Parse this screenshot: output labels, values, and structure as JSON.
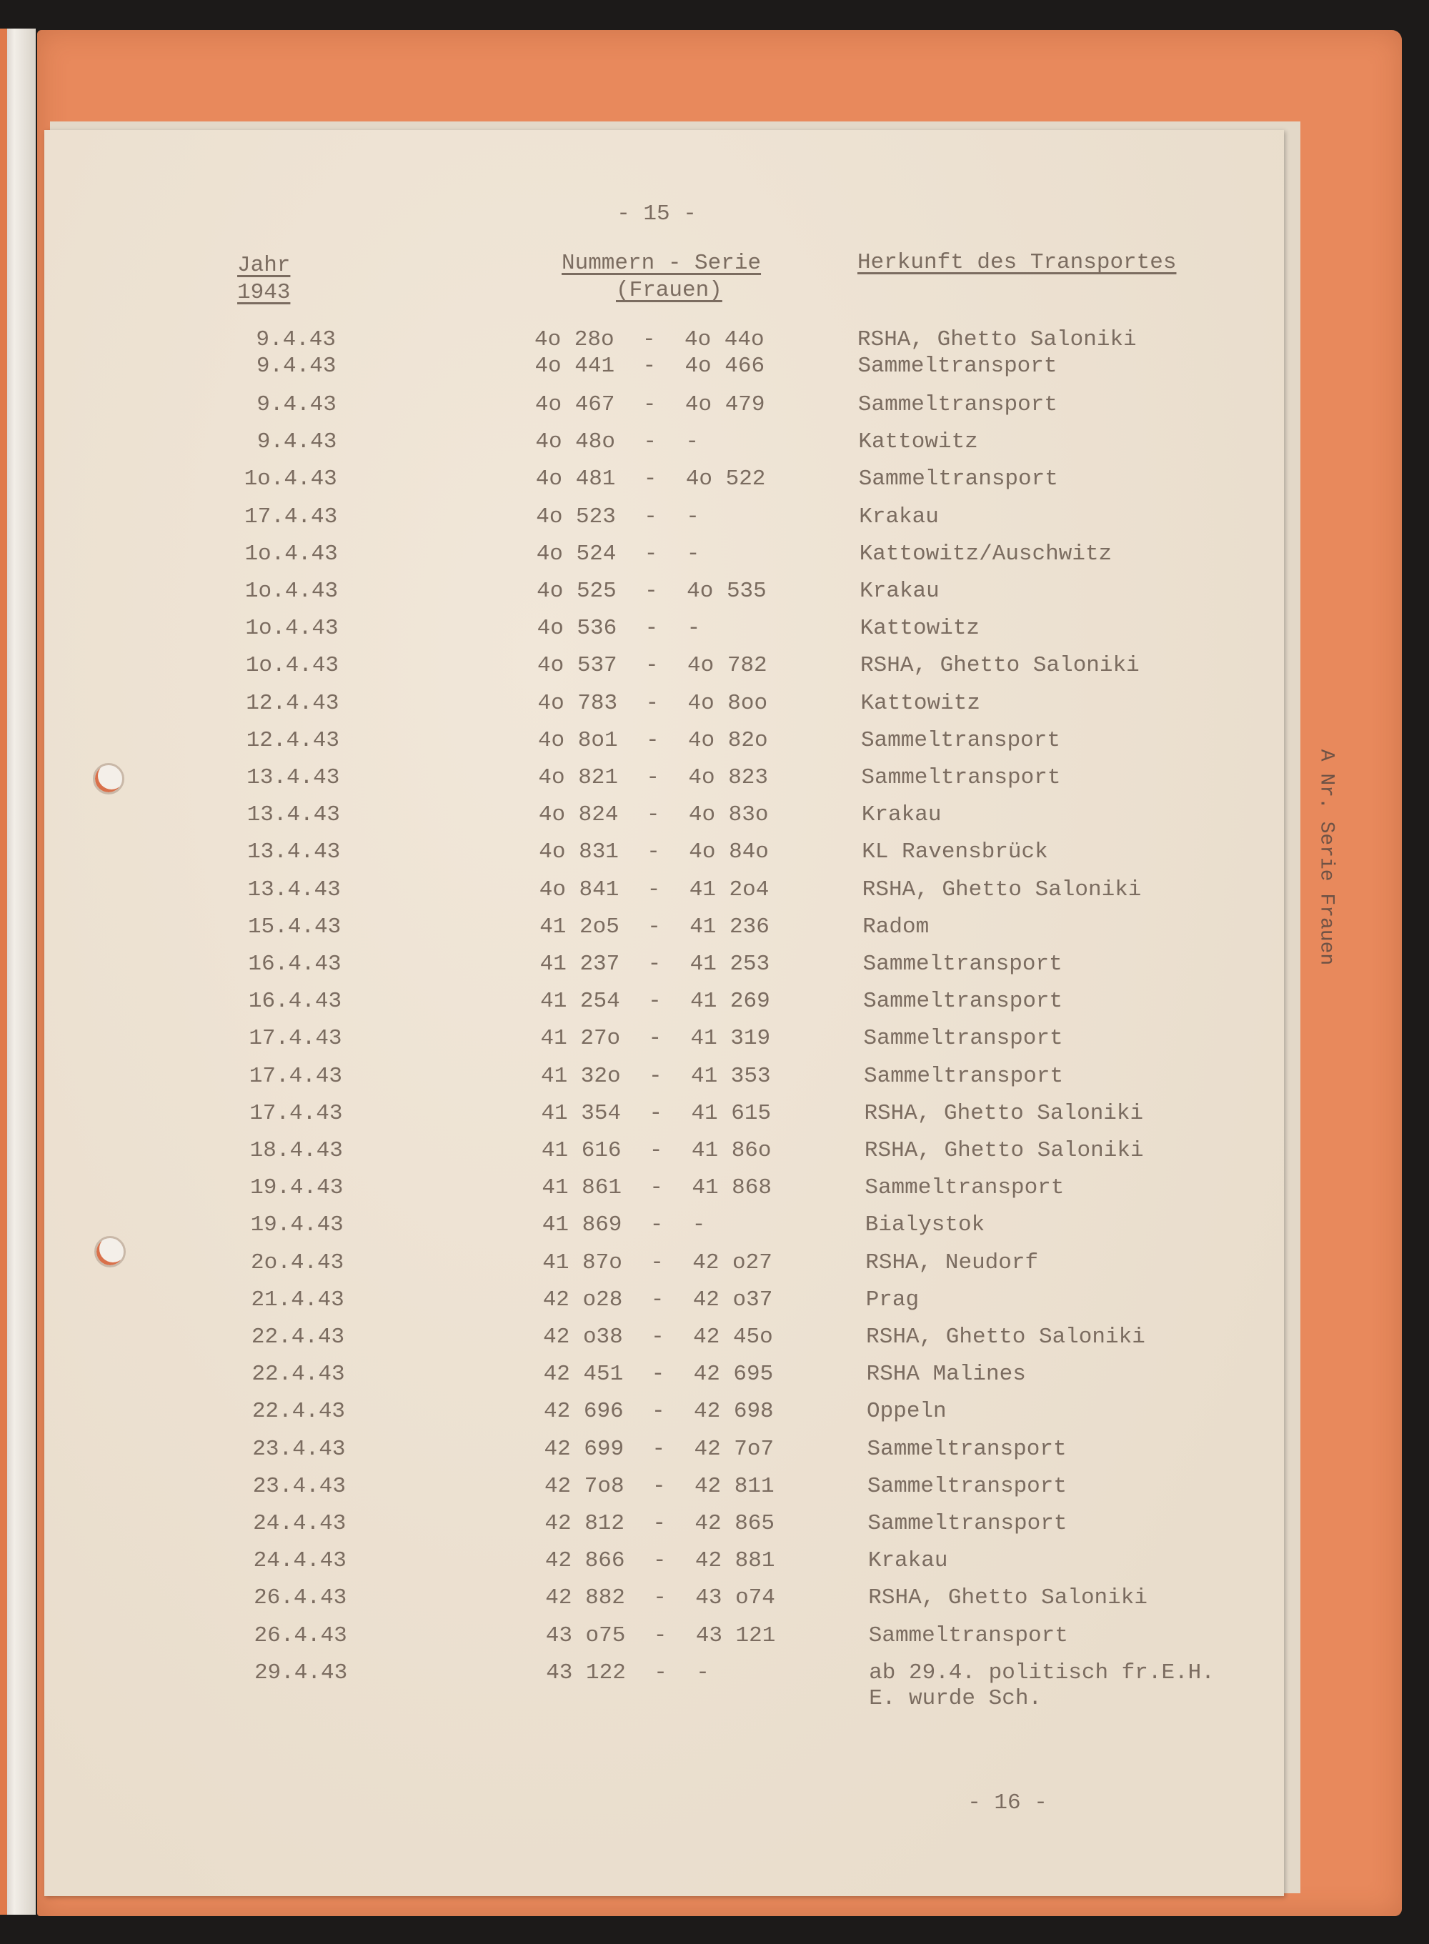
{
  "page_number_top": "- 15 -",
  "page_number_bottom": "- 16 -",
  "side_label": "A Nr. Serie Frauen",
  "headers": {
    "year_line1": "Jahr",
    "year_line2": "1943",
    "numbers_line1": "Nummern - Serie",
    "numbers_line2": "(Frauen)",
    "origin": "Herkunft des Transportes"
  },
  "rows": [
    {
      "date": "9.4.43",
      "from": "4o 28o",
      "to": "4o 44o",
      "origin": "RSHA, Ghetto Saloniki"
    },
    {
      "date": "9.4.43",
      "from": "4o 441",
      "to": "4o 466",
      "origin": "Sammeltransport"
    },
    {
      "date": "9.4.43",
      "from": "4o 467",
      "to": "4o 479",
      "origin": "Sammeltransport"
    },
    {
      "date": "9.4.43",
      "from": "4o 48o",
      "to": "-",
      "origin": "Kattowitz"
    },
    {
      "date": "1o.4.43",
      "from": "4o 481",
      "to": "4o 522",
      "origin": "Sammeltransport"
    },
    {
      "date": "17.4.43",
      "from": "4o 523",
      "to": "-",
      "origin": "Krakau"
    },
    {
      "date": "1o.4.43",
      "from": "4o 524",
      "to": "-",
      "origin": "Kattowitz/Auschwitz"
    },
    {
      "date": "1o.4.43",
      "from": "4o 525",
      "to": "4o 535",
      "origin": "Krakau"
    },
    {
      "date": "1o.4.43",
      "from": "4o 536",
      "to": "-",
      "origin": "Kattowitz"
    },
    {
      "date": "1o.4.43",
      "from": "4o 537",
      "to": "4o 782",
      "origin": "RSHA, Ghetto Saloniki"
    },
    {
      "date": "12.4.43",
      "from": "4o 783",
      "to": "4o 8oo",
      "origin": "Kattowitz"
    },
    {
      "date": "12.4.43",
      "from": "4o 8o1",
      "to": "4o 82o",
      "origin": "Sammeltransport"
    },
    {
      "date": "13.4.43",
      "from": "4o 821",
      "to": "4o 823",
      "origin": "Sammeltransport"
    },
    {
      "date": "13.4.43",
      "from": "4o 824",
      "to": "4o 83o",
      "origin": "Krakau"
    },
    {
      "date": "13.4.43",
      "from": "4o 831",
      "to": "4o 84o",
      "origin": "KL Ravensbrück"
    },
    {
      "date": "13.4.43",
      "from": "4o 841",
      "to": "41 2o4",
      "origin": "RSHA, Ghetto Saloniki"
    },
    {
      "date": "15.4.43",
      "from": "41 2o5",
      "to": "41 236",
      "origin": "Radom"
    },
    {
      "date": "16.4.43",
      "from": "41 237",
      "to": "41 253",
      "origin": "Sammeltransport"
    },
    {
      "date": "16.4.43",
      "from": "41 254",
      "to": "41 269",
      "origin": "Sammeltransport"
    },
    {
      "date": "17.4.43",
      "from": "41 27o",
      "to": "41 319",
      "origin": "Sammeltransport"
    },
    {
      "date": "17.4.43",
      "from": "41 32o",
      "to": "41 353",
      "origin": "Sammeltransport"
    },
    {
      "date": "17.4.43",
      "from": "41 354",
      "to": "41 615",
      "origin": "RSHA, Ghetto Saloniki"
    },
    {
      "date": "18.4.43",
      "from": "41 616",
      "to": "41 86o",
      "origin": "RSHA, Ghetto Saloniki"
    },
    {
      "date": "19.4.43",
      "from": "41 861",
      "to": "41 868",
      "origin": "Sammeltransport"
    },
    {
      "date": "19.4.43",
      "from": "41 869",
      "to": "-",
      "origin": "Bialystok"
    },
    {
      "date": "2o.4.43",
      "from": "41 87o",
      "to": "42 o27",
      "origin": "RSHA, Neudorf"
    },
    {
      "date": "21.4.43",
      "from": "42 o28",
      "to": "42 o37",
      "origin": "Prag"
    },
    {
      "date": "22.4.43",
      "from": "42 o38",
      "to": "42 45o",
      "origin": "RSHA, Ghetto Saloniki"
    },
    {
      "date": "22.4.43",
      "from": "42 451",
      "to": "42 695",
      "origin": "RSHA Malines"
    },
    {
      "date": "22.4.43",
      "from": "42 696",
      "to": "42 698",
      "origin": "Oppeln"
    },
    {
      "date": "23.4.43",
      "from": "42 699",
      "to": "42 7o7",
      "origin": "Sammeltransport"
    },
    {
      "date": "23.4.43",
      "from": "42 7o8",
      "to": "42 811",
      "origin": "Sammeltransport"
    },
    {
      "date": "24.4.43",
      "from": "42 812",
      "to": "42 865",
      "origin": "Sammeltransport"
    },
    {
      "date": "24.4.43",
      "from": "42 866",
      "to": "42 881",
      "origin": "Krakau"
    },
    {
      "date": "26.4.43",
      "from": "42 882",
      "to": "43 o74",
      "origin": "RSHA, Ghetto Saloniki"
    },
    {
      "date": "26.4.43",
      "from": "43 o75",
      "to": "43 121",
      "origin": "Sammeltransport"
    },
    {
      "date": "29.4.43",
      "from": "43 122",
      "to": "-",
      "origin": "ab 29.4. politisch fr.E.H.",
      "origin_line2": "E. wurde Sch."
    }
  ]
}
